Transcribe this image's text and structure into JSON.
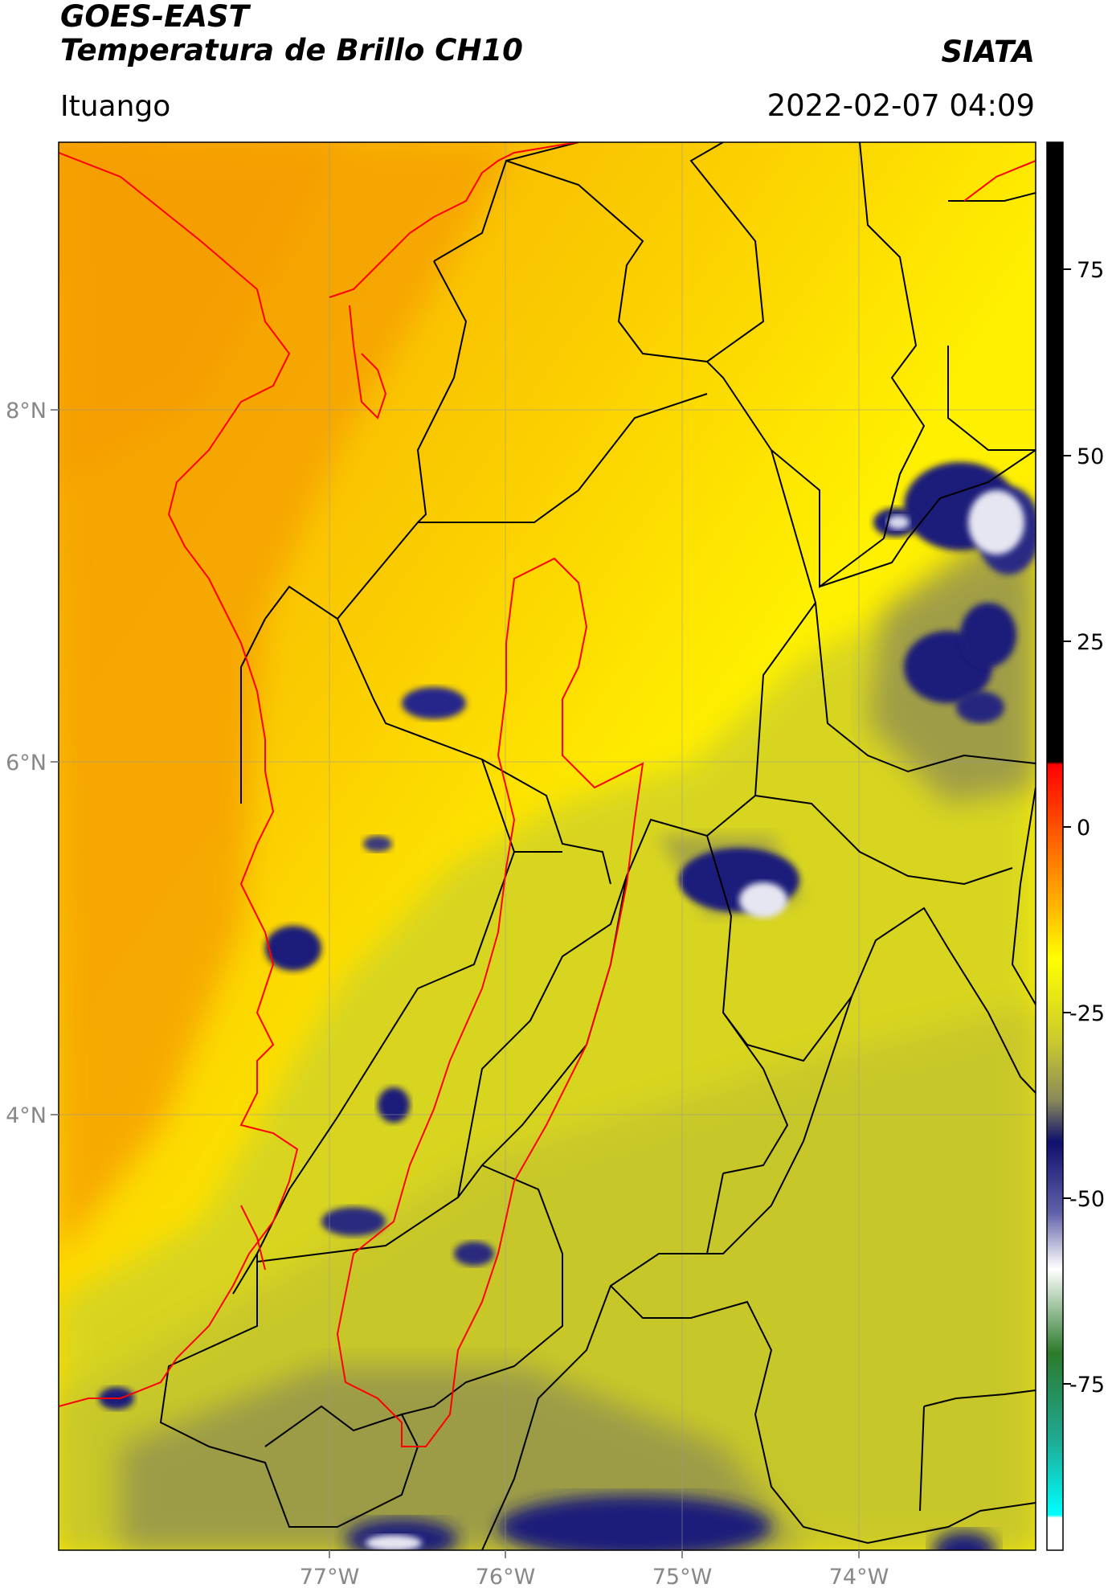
{
  "header": {
    "satellite": "GOES-EAST",
    "product": "Temperatura de Brillo CH10",
    "agency": "SIATA",
    "region": "Ituango",
    "datetime": "2022-02-07 04:09"
  },
  "map": {
    "lon_labels": [
      "77°W",
      "76°W",
      "75°W",
      "74°W"
    ],
    "lat_labels": [
      "8°N",
      "6°N",
      "4°N"
    ],
    "colors": {
      "orange": "#f6a500",
      "yellow": "#fff000",
      "olive": "#d6d423",
      "grey": "#8a8a52",
      "navy": "#1a1a7a",
      "white": "#e6e6f2",
      "border_black": "#000000",
      "border_red": "#ff0000",
      "grid": "#999999"
    }
  },
  "colorbar": {
    "ticks": [
      "75",
      "50",
      "25",
      "0",
      "-25",
      "-50",
      "-75"
    ],
    "colors": [
      "#000000",
      "#ff0000",
      "#ff8c00",
      "#ffff00",
      "#b7b72a",
      "#6e6e6e",
      "#10106e",
      "#8888c0",
      "#ffffff",
      "#2c7a2c",
      "#1fe0d0"
    ]
  }
}
